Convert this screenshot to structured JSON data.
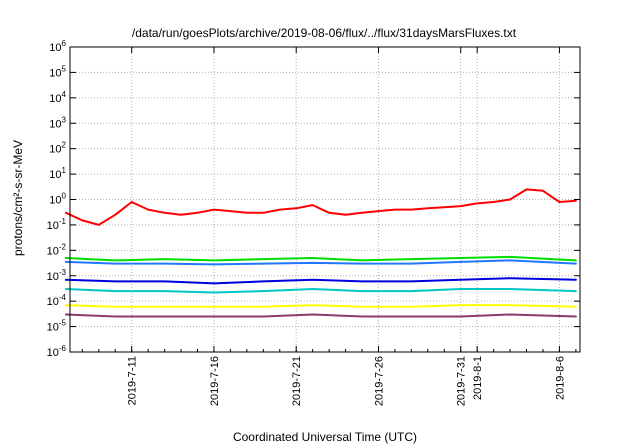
{
  "chart_data": {
    "type": "line",
    "title": "/data/run/goesPlots/archive/2019-08-06/flux/../flux/31daysMarsFluxes.txt",
    "xlabel": "Coordinated Universal Time (UTC)",
    "ylabel": "protons/cm²-s-sr-MeV",
    "y_scale": "log",
    "ylim": [
      1e-06,
      1000000.0
    ],
    "xlim": [
      "2019-07-07 06:00",
      "2019-08-07 06:00"
    ],
    "grid": true,
    "y_ticks": [
      {
        "v": 1e-06,
        "base": "10",
        "exp": "-6"
      },
      {
        "v": 1e-05,
        "base": "10",
        "exp": "-5"
      },
      {
        "v": 0.0001,
        "base": "10",
        "exp": "-4"
      },
      {
        "v": 0.001,
        "base": "10",
        "exp": "-3"
      },
      {
        "v": 0.01,
        "base": "10",
        "exp": "-2"
      },
      {
        "v": 0.1,
        "base": "10",
        "exp": "-1"
      },
      {
        "v": 1.0,
        "base": "10",
        "exp": "0"
      },
      {
        "v": 10.0,
        "base": "10",
        "exp": "1"
      },
      {
        "v": 100.0,
        "base": "10",
        "exp": "2"
      },
      {
        "v": 1000.0,
        "base": "10",
        "exp": "3"
      },
      {
        "v": 10000.0,
        "base": "10",
        "exp": "4"
      },
      {
        "v": 100000.0,
        "base": "10",
        "exp": "5"
      },
      {
        "v": 1000000.0,
        "base": "10",
        "exp": "6"
      }
    ],
    "x_ticks": [
      {
        "date": "2019-07-11",
        "label": "2019-7-11"
      },
      {
        "date": "2019-07-16",
        "label": "2019-7-16"
      },
      {
        "date": "2019-07-21",
        "label": "2019-7-21"
      },
      {
        "date": "2019-07-26",
        "label": "2019-7-26"
      },
      {
        "date": "2019-07-31",
        "label": "2019-7-31"
      },
      {
        "date": "2019-08-01",
        "label": "2019-8-1"
      },
      {
        "date": "2019-08-06",
        "label": "2019-8-6"
      }
    ],
    "series": [
      {
        "color": "#ff0000",
        "x": [
          "2019-07-07",
          "2019-07-08",
          "2019-07-09",
          "2019-07-10",
          "2019-07-11",
          "2019-07-12",
          "2019-07-13",
          "2019-07-14",
          "2019-07-15",
          "2019-07-16",
          "2019-07-17",
          "2019-07-18",
          "2019-07-19",
          "2019-07-20",
          "2019-07-21",
          "2019-07-22",
          "2019-07-23",
          "2019-07-24",
          "2019-07-25",
          "2019-07-26",
          "2019-07-27",
          "2019-07-28",
          "2019-07-29",
          "2019-07-30",
          "2019-07-31",
          "2019-08-01",
          "2019-08-02",
          "2019-08-03",
          "2019-08-04",
          "2019-08-05",
          "2019-08-06",
          "2019-08-07"
        ],
        "values": [
          0.3,
          0.15,
          0.1,
          0.25,
          0.8,
          0.4,
          0.3,
          0.25,
          0.3,
          0.4,
          0.35,
          0.3,
          0.3,
          0.4,
          0.45,
          0.6,
          0.3,
          0.25,
          0.3,
          0.35,
          0.4,
          0.4,
          0.45,
          0.5,
          0.55,
          0.7,
          0.8,
          1.0,
          2.5,
          2.2,
          0.8,
          0.9
        ]
      },
      {
        "color": "#00dd00",
        "x": [
          "2019-07-07",
          "2019-07-10",
          "2019-07-13",
          "2019-07-16",
          "2019-07-19",
          "2019-07-22",
          "2019-07-25",
          "2019-07-28",
          "2019-07-31",
          "2019-08-03",
          "2019-08-07"
        ],
        "values": [
          0.005,
          0.004,
          0.0045,
          0.004,
          0.0045,
          0.005,
          0.004,
          0.0045,
          0.005,
          0.0055,
          0.004
        ]
      },
      {
        "color": "#2277ff",
        "x": [
          "2019-07-07",
          "2019-07-10",
          "2019-07-13",
          "2019-07-16",
          "2019-07-19",
          "2019-07-22",
          "2019-07-25",
          "2019-07-28",
          "2019-07-31",
          "2019-08-03",
          "2019-08-07"
        ],
        "values": [
          0.0035,
          0.003,
          0.003,
          0.0028,
          0.003,
          0.0032,
          0.003,
          0.003,
          0.0035,
          0.004,
          0.003
        ]
      },
      {
        "color": "#0000dd",
        "x": [
          "2019-07-07",
          "2019-07-10",
          "2019-07-13",
          "2019-07-16",
          "2019-07-19",
          "2019-07-22",
          "2019-07-25",
          "2019-07-28",
          "2019-07-31",
          "2019-08-03",
          "2019-08-07"
        ],
        "values": [
          0.0007,
          0.0006,
          0.0006,
          0.0005,
          0.0006,
          0.0007,
          0.0006,
          0.0006,
          0.0007,
          0.0008,
          0.0007
        ]
      },
      {
        "color": "#00c8c8",
        "x": [
          "2019-07-07",
          "2019-07-10",
          "2019-07-13",
          "2019-07-16",
          "2019-07-19",
          "2019-07-22",
          "2019-07-25",
          "2019-07-28",
          "2019-07-31",
          "2019-08-03",
          "2019-08-07"
        ],
        "values": [
          0.0003,
          0.00025,
          0.00025,
          0.00022,
          0.00025,
          0.0003,
          0.00025,
          0.00025,
          0.0003,
          0.0003,
          0.00025
        ]
      },
      {
        "color": "#ffff00",
        "x": [
          "2019-07-07",
          "2019-07-10",
          "2019-07-13",
          "2019-07-16",
          "2019-07-19",
          "2019-07-22",
          "2019-07-25",
          "2019-07-28",
          "2019-07-31",
          "2019-08-03",
          "2019-08-07"
        ],
        "values": [
          7e-05,
          6e-05,
          6e-05,
          6e-05,
          6e-05,
          7e-05,
          6e-05,
          6e-05,
          7e-05,
          7e-05,
          6e-05
        ]
      },
      {
        "color": "#8b3a6b",
        "x": [
          "2019-07-07",
          "2019-07-10",
          "2019-07-13",
          "2019-07-16",
          "2019-07-19",
          "2019-07-22",
          "2019-07-25",
          "2019-07-28",
          "2019-07-31",
          "2019-08-03",
          "2019-08-07"
        ],
        "values": [
          3e-05,
          2.5e-05,
          2.5e-05,
          2.5e-05,
          2.5e-05,
          3e-05,
          2.5e-05,
          2.5e-05,
          2.5e-05,
          3e-05,
          2.5e-05
        ]
      }
    ]
  }
}
